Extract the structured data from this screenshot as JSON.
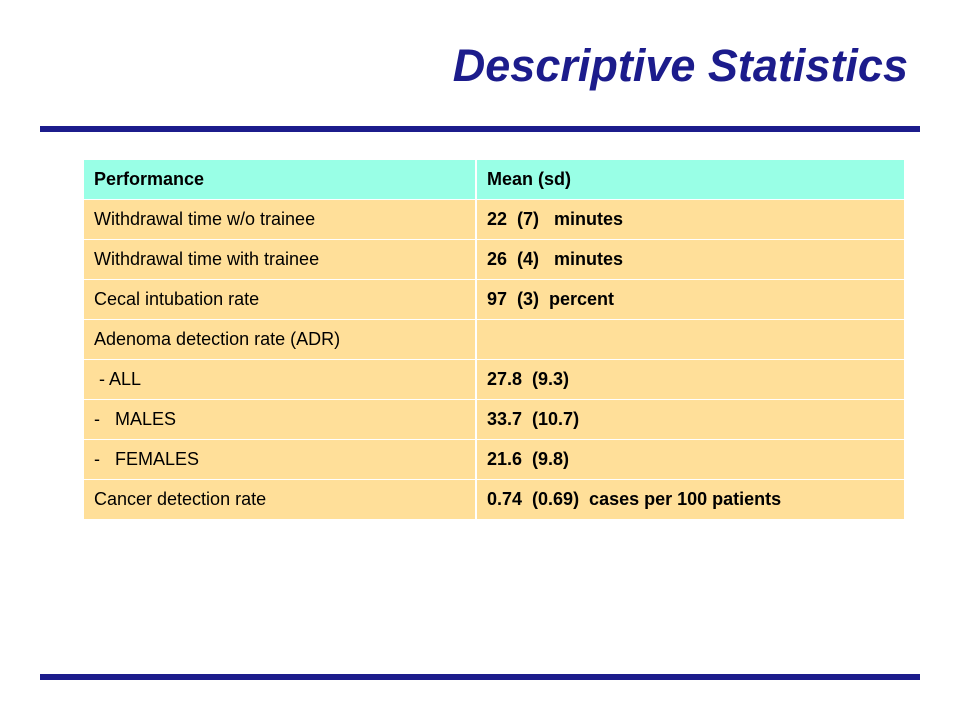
{
  "slide": {
    "title": "Descriptive Statistics"
  },
  "table": {
    "headers": [
      "Performance",
      "Mean (sd)"
    ],
    "rows": [
      {
        "label": "Withdrawal time w/o trainee",
        "value": "22  (7)   minutes"
      },
      {
        "label": "Withdrawal time with trainee",
        "value": "26  (4)   minutes"
      },
      {
        "label": "Cecal intubation rate",
        "value": "97  (3)  percent"
      },
      {
        "label": "Adenoma detection rate (ADR)",
        "value": ""
      },
      {
        "label": " - ALL",
        "value": "27.8  (9.3)"
      },
      {
        "label": "-   MALES",
        "value": "33.7  (10.7)"
      },
      {
        "label": "-   FEMALES",
        "value": "21.6  (9.8)"
      },
      {
        "label": "Cancer detection rate",
        "value": "0.74  (0.69)  cases per 100 patients"
      }
    ]
  },
  "colors": {
    "title": "#1c1c8c",
    "rule": "#1c1c8c",
    "header_bg": "#99ffe6",
    "row_bg": "#ffdf99"
  }
}
